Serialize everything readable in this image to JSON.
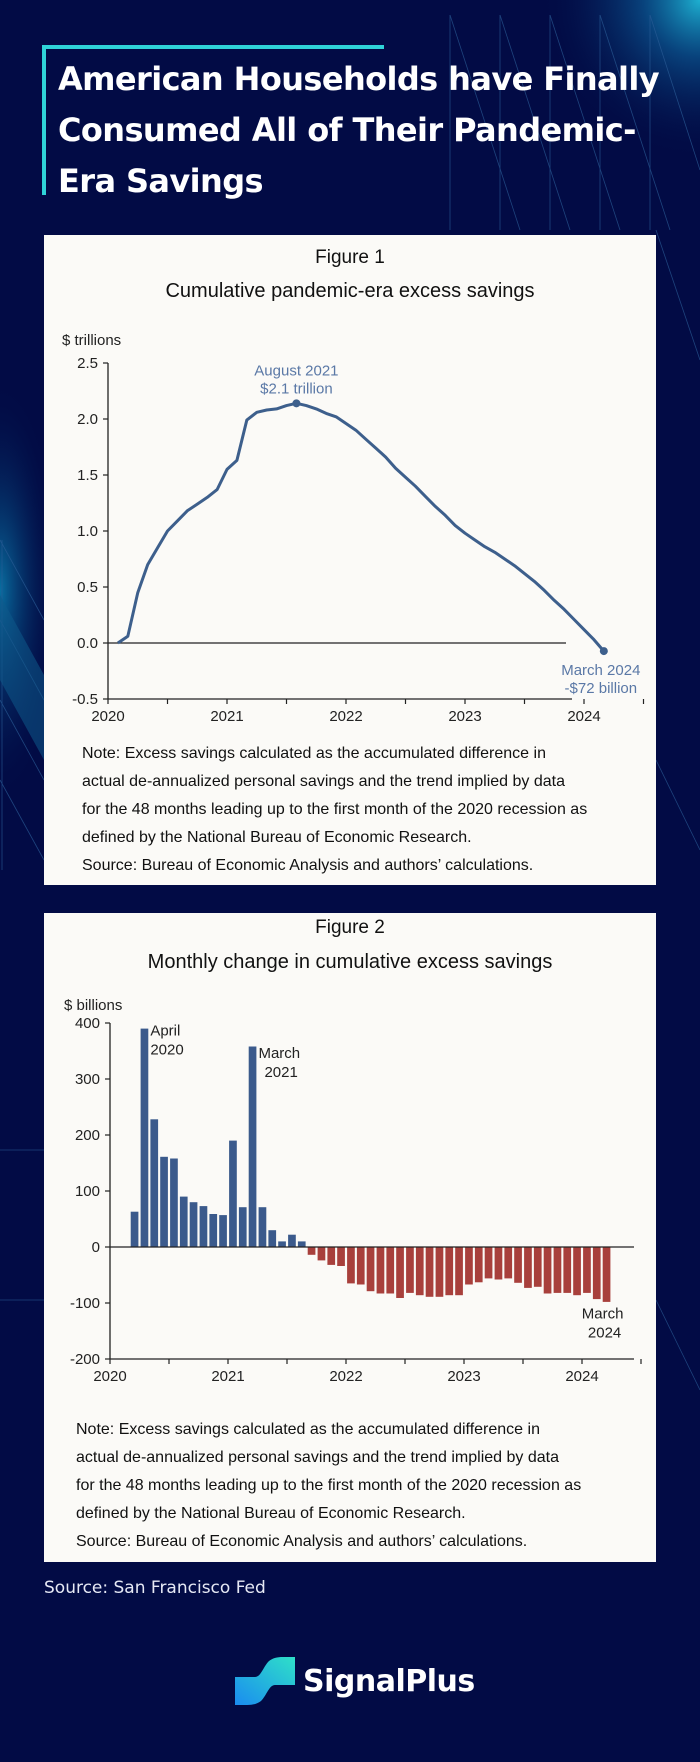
{
  "header": {
    "title": "American Households have Finally Consumed All of Their Pandemic-Era Savings"
  },
  "figure1": {
    "label": "Figure 1",
    "note_lines": [
      "Note: Excess savings calculated as the accumulated difference in",
      "actual de-annualized personal savings and the trend implied by data",
      "for the 48 months leading up to the first month of the 2020 recession as",
      "defined by the National Bureau of Economic Research.",
      "Source: Bureau of Economic Analysis and authors’ calculations."
    ]
  },
  "figure2": {
    "label": "Figure 2",
    "note_lines": [
      "Note: Excess savings calculated as the accumulated difference in",
      "actual de-annualized personal savings and the trend implied by data",
      "for the 48 months leading up to the first month of the 2020 recession as",
      "defined by the National Bureau of Economic Research.",
      "Source: Bureau of Economic Analysis and authors’ calculations."
    ]
  },
  "footer": {
    "source": "Source: San Francisco Fed",
    "brand": "SignalPlus"
  },
  "colors": {
    "background": "#020b45",
    "accent": "#2fd3d8",
    "line": "#3d5f8c",
    "bar_positive": "#3b5a8c",
    "bar_negative": "#a8403c"
  },
  "chart_data": [
    {
      "type": "line",
      "title": "Cumulative pandemic-era excess savings",
      "ylabel": "$ trillions",
      "xlabel": "",
      "ylim": [
        -0.5,
        2.5
      ],
      "yticks": [
        "2.5",
        "2.0",
        "1.5",
        "1.0",
        "0.5",
        "0.0",
        "-0.5"
      ],
      "ytick_values": [
        2.5,
        2.0,
        1.5,
        1.0,
        0.5,
        0.0,
        -0.5
      ],
      "xticks": [
        "2020",
        "2021",
        "2022",
        "2023",
        "2024"
      ],
      "grid": false,
      "x_start": "2020-02",
      "series": [
        {
          "name": "Cumulative excess savings",
          "months": [
            "2020-02",
            "2020-03",
            "2020-04",
            "2020-05",
            "2020-06",
            "2020-07",
            "2020-08",
            "2020-09",
            "2020-10",
            "2020-11",
            "2020-12",
            "2021-01",
            "2021-02",
            "2021-03",
            "2021-04",
            "2021-05",
            "2021-06",
            "2021-07",
            "2021-08",
            "2021-09",
            "2021-10",
            "2021-11",
            "2021-12",
            "2022-01",
            "2022-02",
            "2022-03",
            "2022-04",
            "2022-05",
            "2022-06",
            "2022-07",
            "2022-08",
            "2022-09",
            "2022-10",
            "2022-11",
            "2022-12",
            "2023-01",
            "2023-02",
            "2023-03",
            "2023-04",
            "2023-05",
            "2023-06",
            "2023-07",
            "2023-08",
            "2023-09",
            "2023-10",
            "2023-11",
            "2023-12",
            "2024-01",
            "2024-02",
            "2024-03"
          ],
          "values": [
            0.0,
            0.06,
            0.45,
            0.7,
            0.85,
            1.0,
            1.09,
            1.18,
            1.24,
            1.3,
            1.37,
            1.55,
            1.63,
            1.99,
            2.06,
            2.08,
            2.09,
            2.12,
            2.14,
            2.12,
            2.09,
            2.05,
            2.02,
            1.96,
            1.9,
            1.82,
            1.74,
            1.66,
            1.56,
            1.48,
            1.4,
            1.31,
            1.22,
            1.14,
            1.05,
            0.98,
            0.92,
            0.86,
            0.81,
            0.75,
            0.69,
            0.62,
            0.55,
            0.47,
            0.38,
            0.3,
            0.21,
            0.12,
            0.03,
            -0.072
          ]
        }
      ],
      "annotations": [
        {
          "month": "2021-08",
          "value": 2.14,
          "lines": [
            "August 2021",
            "$2.1 trillion"
          ]
        },
        {
          "month": "2024-03",
          "value": -0.072,
          "lines": [
            "March 2024",
            "-$72 billion"
          ]
        }
      ]
    },
    {
      "type": "bar",
      "title": "Monthly change in cumulative excess savings",
      "ylabel": "$ billions",
      "xlabel": "",
      "ylim": [
        -200,
        400
      ],
      "yticks": [
        "400",
        "300",
        "200",
        "100",
        "0",
        "-100",
        "-200"
      ],
      "ytick_values": [
        400,
        300,
        200,
        100,
        0,
        -100,
        -200
      ],
      "xticks": [
        "2020",
        "2021",
        "2022",
        "2023",
        "2024"
      ],
      "grid": false,
      "categories": [
        "2020-03",
        "2020-04",
        "2020-05",
        "2020-06",
        "2020-07",
        "2020-08",
        "2020-09",
        "2020-10",
        "2020-11",
        "2020-12",
        "2021-01",
        "2021-02",
        "2021-03",
        "2021-04",
        "2021-05",
        "2021-06",
        "2021-07",
        "2021-08",
        "2021-09",
        "2021-10",
        "2021-11",
        "2021-12",
        "2022-01",
        "2022-02",
        "2022-03",
        "2022-04",
        "2022-05",
        "2022-06",
        "2022-07",
        "2022-08",
        "2022-09",
        "2022-10",
        "2022-11",
        "2022-12",
        "2023-01",
        "2023-02",
        "2023-03",
        "2023-04",
        "2023-05",
        "2023-06",
        "2023-07",
        "2023-08",
        "2023-09",
        "2023-10",
        "2023-11",
        "2023-12",
        "2024-01",
        "2024-02",
        "2024-03"
      ],
      "values": [
        63,
        390,
        228,
        161,
        158,
        90,
        80,
        73,
        59,
        57,
        190,
        71,
        358,
        71,
        30,
        10,
        22,
        10,
        -14,
        -24,
        -32,
        -34,
        -65,
        -67,
        -79,
        -83,
        -83,
        -91,
        -82,
        -86,
        -89,
        -89,
        -86,
        -86,
        -67,
        -63,
        -56,
        -58,
        -56,
        -64,
        -73,
        -71,
        -83,
        -82,
        -82,
        -86,
        -82,
        -93,
        -98
      ],
      "annotations": [
        {
          "month": "2020-04",
          "lines": [
            "April",
            "2020"
          ]
        },
        {
          "month": "2021-03",
          "lines": [
            "March",
            "2021"
          ]
        },
        {
          "month": "2024-03",
          "lines": [
            "March",
            "2024"
          ]
        }
      ]
    }
  ]
}
